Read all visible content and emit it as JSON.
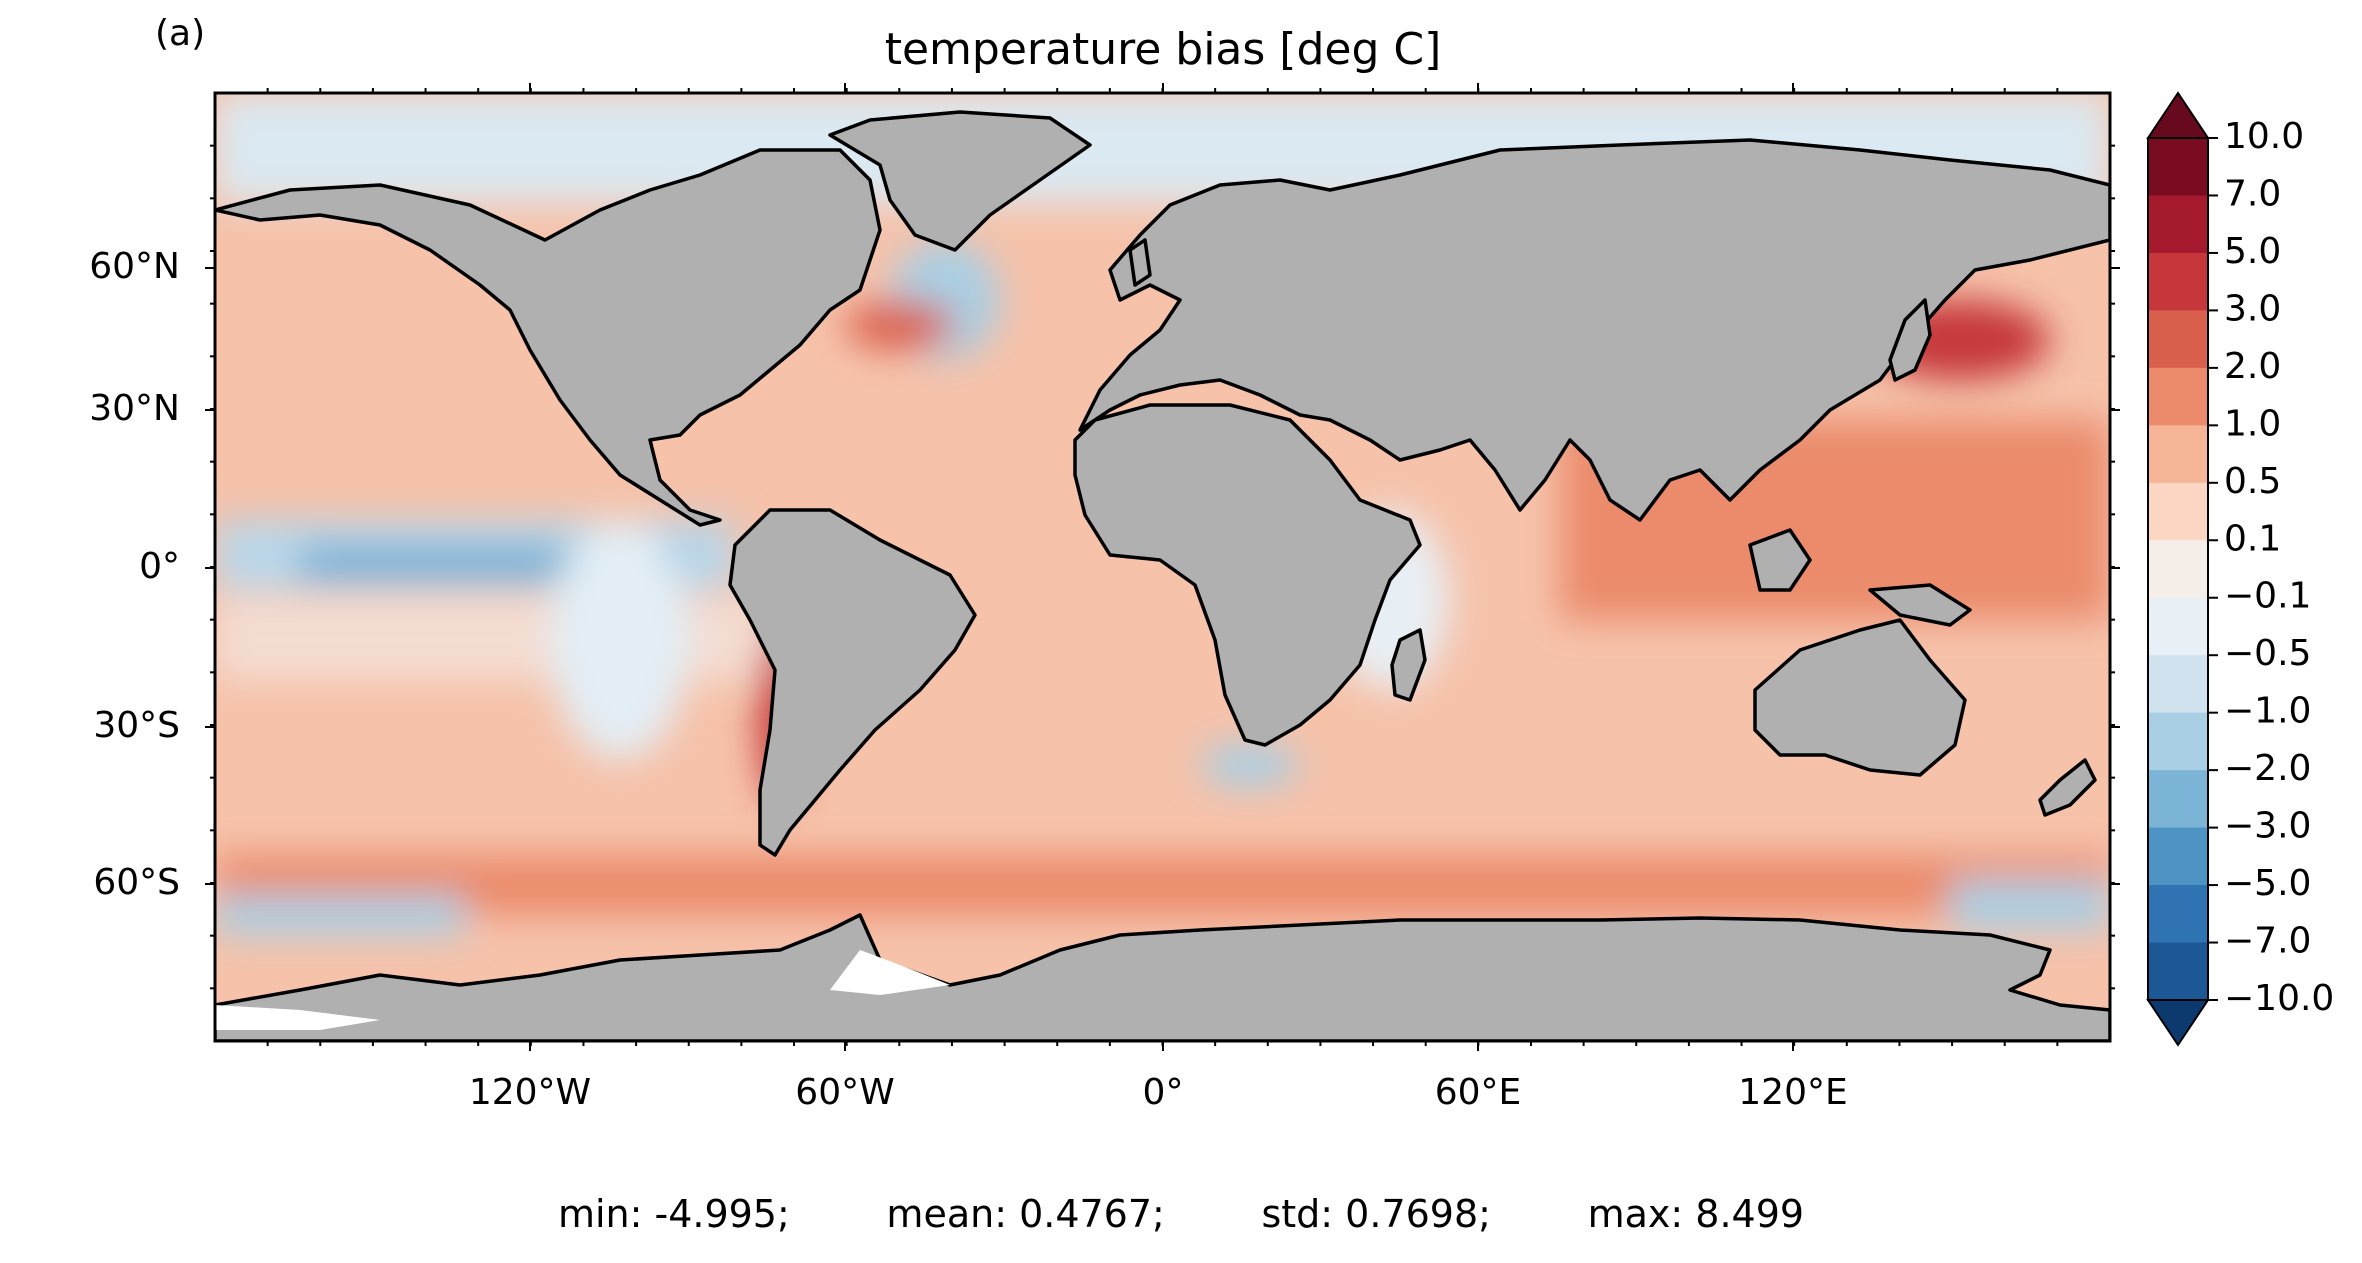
{
  "panel_label": "(a)",
  "title": "temperature bias [deg C]",
  "colors": {
    "land": "#b0b0b0",
    "ocean_base": "#f6c2aa",
    "coast": "#000000"
  },
  "lat_ticks": [
    "60°N",
    "30°N",
    "0°",
    "30°S",
    "60°S"
  ],
  "lon_ticks": [
    "120°W",
    "60°W",
    "0°",
    "60°E",
    "120°E"
  ],
  "colorbar": {
    "labels": [
      "10.0",
      "7.0",
      "5.0",
      "3.0",
      "2.0",
      "1.0",
      "0.5",
      "0.1",
      "−0.1",
      "−0.5",
      "−1.0",
      "−2.0",
      "−3.0",
      "−5.0",
      "−7.0",
      "−10.0"
    ],
    "colors": [
      "#7a0c22",
      "#a51a2c",
      "#c6373b",
      "#da604e",
      "#eb8b6c",
      "#f6b596",
      "#fbd7c3",
      "#f6eee9",
      "#e9f0f5",
      "#cfe2ee",
      "#a9cfe4",
      "#7cb4d6",
      "#4d93c3",
      "#2f73b2",
      "#1c5796"
    ],
    "over_color": "#670a1f",
    "under_color": "#0d3a6e"
  },
  "stats": {
    "min": "min: -4.995;",
    "mean": "mean: 0.4767;",
    "std": "std: 0.7698;",
    "max": "max: 8.499"
  }
}
